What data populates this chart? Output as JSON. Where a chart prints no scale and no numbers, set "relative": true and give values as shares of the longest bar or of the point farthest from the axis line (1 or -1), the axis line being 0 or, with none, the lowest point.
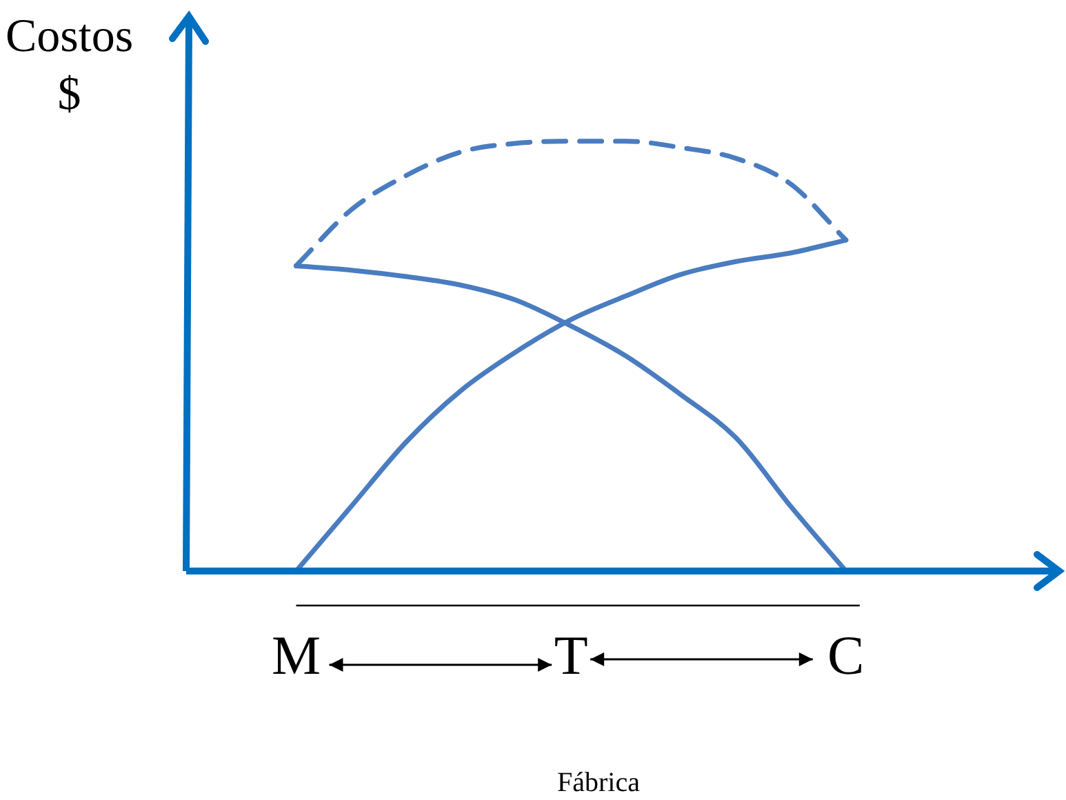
{
  "chart_data": {
    "type": "line",
    "relative": true,
    "ylabel": "Costos\n$",
    "xlabel": "Fábrica",
    "categories": [
      null,
      null,
      "M",
      null,
      null,
      null,
      null,
      "T",
      null,
      null,
      null,
      null,
      "C",
      null,
      null,
      null
    ],
    "grid": false,
    "legend": false,
    "marker": "none",
    "series": [
      {
        "color": "#4a7cc0",
        "line_style": "dashed",
        "values": [
          null,
          null,
          0.71,
          0.84,
          0.92,
          0.975,
          0.995,
          1,
          1,
          0.985,
          0.96,
          0.9,
          0.77,
          null,
          null,
          null
        ]
      },
      {
        "color": "#4a7cc0",
        "line_style": "solid",
        "values": [
          null,
          null,
          0.71,
          0.7,
          0.685,
          0.665,
          0.63,
          0.57,
          0.5,
          0.41,
          0.31,
          0.15,
          0,
          null,
          null,
          null
        ]
      },
      {
        "color": "#4a7cc0",
        "line_style": "solid",
        "values": [
          null,
          null,
          0,
          0.15,
          0.3,
          0.42,
          0.51,
          0.585,
          0.64,
          0.69,
          0.72,
          0.74,
          0.77,
          null,
          null,
          null
        ]
      }
    ]
  }
}
